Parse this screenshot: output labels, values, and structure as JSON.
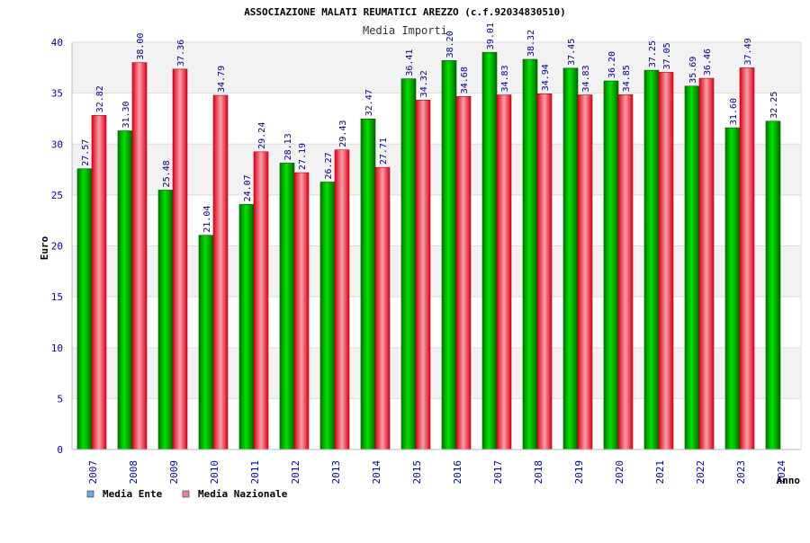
{
  "chart_data": {
    "type": "bar",
    "title": "ASSOCIAZIONE MALATI REUMATICI AREZZO (c.f.92034830510)",
    "subtitle": "Media Importi",
    "xlabel": "Anno",
    "ylabel": "Euro",
    "ylim": [
      0,
      40
    ],
    "yticks": [
      0,
      5,
      10,
      15,
      20,
      25,
      30,
      35,
      40
    ],
    "grid": true,
    "legend_position": "bottom-left",
    "categories": [
      "2007",
      "2008",
      "2009",
      "2010",
      "2011",
      "2012",
      "2013",
      "2014",
      "2015",
      "2016",
      "2017",
      "2018",
      "2019",
      "2020",
      "2021",
      "2022",
      "2023",
      "2024"
    ],
    "series": [
      {
        "name": "Media Ente",
        "color": "#00cc00",
        "legend_color": "#6aa8e6",
        "values": [
          27.57,
          31.3,
          25.48,
          21.04,
          24.07,
          28.13,
          26.27,
          32.47,
          36.41,
          38.2,
          39.01,
          38.32,
          37.45,
          36.2,
          37.25,
          35.69,
          31.6,
          32.25
        ],
        "labels": [
          "27.57",
          "31.30",
          "25.48",
          "21.04",
          "24.07",
          "28.13",
          "26.27",
          "32.47",
          "36.41",
          "38.20",
          "39.01",
          "38.32",
          "37.45",
          "36.20",
          "37.25",
          "35.69",
          "31.60",
          "32.25"
        ]
      },
      {
        "name": "Media Nazionale",
        "color": "#ee2233",
        "legend_color": "#e67fb0",
        "values": [
          32.82,
          38.0,
          37.36,
          34.79,
          29.24,
          27.19,
          29.43,
          27.71,
          34.32,
          34.68,
          34.83,
          34.94,
          34.83,
          34.85,
          37.05,
          36.46,
          37.49,
          null
        ],
        "labels": [
          "32.82",
          "38.00",
          "37.36",
          "34.79",
          "29.24",
          "27.19",
          "29.43",
          "27.71",
          "34.32",
          "34.68",
          "34.83",
          "34.94",
          "34.83",
          "34.85",
          "37.05",
          "36.46",
          "37.49",
          null
        ]
      }
    ]
  }
}
